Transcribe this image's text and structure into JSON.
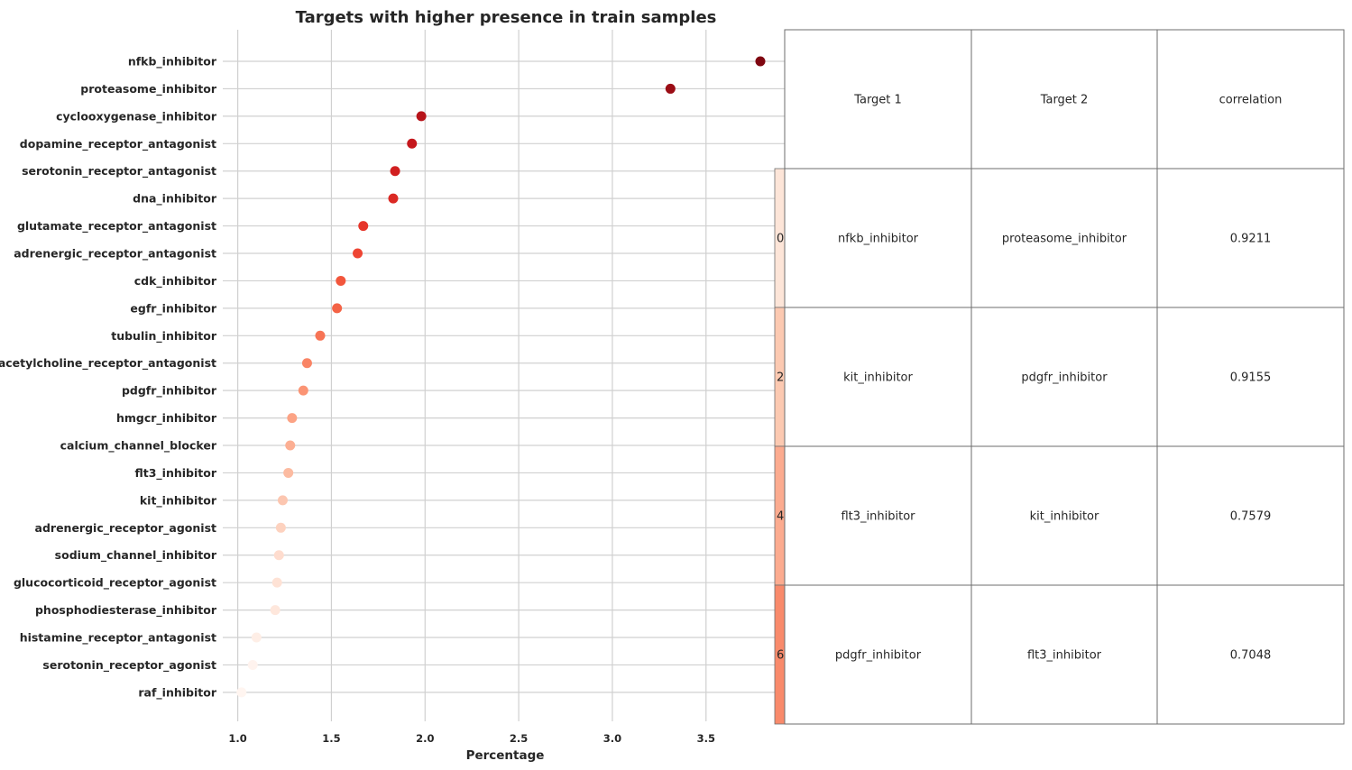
{
  "chart_data": [
    {
      "type": "scatter",
      "title": "Targets with higher presence in train samples",
      "xlabel": "Percentage",
      "ylabel": "",
      "xlim": [
        0.92,
        3.92
      ],
      "xticks": [
        "1.0",
        "1.5",
        "2.0",
        "2.5",
        "3.0",
        "3.5"
      ],
      "xtick_values": [
        1.0,
        1.5,
        2.0,
        2.5,
        3.0,
        3.5
      ],
      "grid": true,
      "colormap": "Reds",
      "categories": [
        "nfkb_inhibitor",
        "proteasome_inhibitor",
        "cyclooxygenase_inhibitor",
        "dopamine_receptor_antagonist",
        "serotonin_receptor_antagonist",
        "dna_inhibitor",
        "glutamate_receptor_antagonist",
        "adrenergic_receptor_antagonist",
        "cdk_inhibitor",
        "egfr_inhibitor",
        "tubulin_inhibitor",
        "acetylcholine_receptor_antagonist",
        "pdgfr_inhibitor",
        "hmgcr_inhibitor",
        "calcium_channel_blocker",
        "flt3_inhibitor",
        "kit_inhibitor",
        "adrenergic_receptor_agonist",
        "sodium_channel_inhibitor",
        "glucocorticoid_receptor_agonist",
        "phosphodiesterase_inhibitor",
        "histamine_receptor_antagonist",
        "serotonin_receptor_agonist",
        "raf_inhibitor"
      ],
      "values": [
        3.79,
        3.31,
        1.98,
        1.93,
        1.84,
        1.83,
        1.67,
        1.64,
        1.55,
        1.53,
        1.44,
        1.37,
        1.35,
        1.29,
        1.28,
        1.27,
        1.24,
        1.23,
        1.22,
        1.21,
        1.2,
        1.1,
        1.08,
        1.02
      ],
      "point_colors": [
        "#7f0610",
        "#9b0d15",
        "#b7141a",
        "#c5171c",
        "#d11f20",
        "#db2924",
        "#e6352a",
        "#ee4533",
        "#f2563c",
        "#f46346",
        "#f77455",
        "#f98465",
        "#fb9474",
        "#fca385",
        "#fcaf93",
        "#fcbba1",
        "#fcc6b0",
        "#fdd2bf",
        "#fedcce",
        "#fee2d5",
        "#fee7dc",
        "#feeee6",
        "#fff3ee",
        "#fff5f0"
      ]
    },
    {
      "type": "table",
      "columns": [
        "Target 1",
        "Target 2",
        "correlation"
      ],
      "rows": [
        {
          "index": "0",
          "cells": [
            "nfkb_inhibitor",
            "proteasome_inhibitor",
            "0.9211"
          ],
          "color": "#fde5d8"
        },
        {
          "index": "2",
          "cells": [
            "kit_inhibitor",
            "pdgfr_inhibitor",
            "0.9155"
          ],
          "color": "#fcc9b1"
        },
        {
          "index": "4",
          "cells": [
            "flt3_inhibitor",
            "kit_inhibitor",
            "0.7579"
          ],
          "color": "#fcab8f"
        },
        {
          "index": "6",
          "cells": [
            "pdgfr_inhibitor",
            "flt3_inhibitor",
            "0.7048"
          ],
          "color": "#f98a6b"
        }
      ]
    }
  ]
}
